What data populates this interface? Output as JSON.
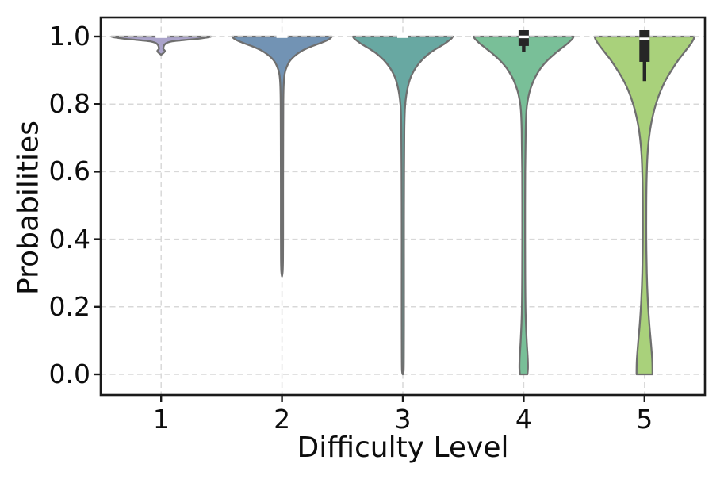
{
  "figure": {
    "background": "#ffffff"
  },
  "chart_data": {
    "type": "violin",
    "title": "",
    "xlabel": "Difficulty Level",
    "ylabel": "Probabilities",
    "categories": [
      "1",
      "2",
      "3",
      "4",
      "5"
    ],
    "ytick_labels": [
      "0.0",
      "0.2",
      "0.4",
      "0.6",
      "0.8",
      "1.0"
    ],
    "ytick_values": [
      0.0,
      0.2,
      0.4,
      0.6,
      0.8,
      1.0
    ],
    "ylim": [
      -0.06,
      1.06
    ],
    "grid": {
      "visible": true,
      "style": "dashed",
      "color": "#d8d8d8"
    },
    "style": {
      "edge_color": "#6f6f6f",
      "box_color": "#262626",
      "median_color": "#ffffff",
      "spine_color": "#1a1a1a",
      "text_color": "#0d0d0d",
      "background": "#ffffff"
    },
    "series": [
      {
        "category": "1",
        "color": "#aba4cb",
        "summary": {
          "min": 0.945,
          "max": 1.0,
          "median": 1.0,
          "peak": 1.0
        },
        "box": {
          "type": "tick",
          "median": 1.0
        },
        "profile": [
          [
            1.0,
            1.0
          ],
          [
            0.997,
            0.92
          ],
          [
            0.993,
            0.72
          ],
          [
            0.99,
            0.5
          ],
          [
            0.987,
            0.3
          ],
          [
            0.984,
            0.17
          ],
          [
            0.98,
            0.1
          ],
          [
            0.975,
            0.065
          ],
          [
            0.97,
            0.05
          ],
          [
            0.963,
            0.045
          ],
          [
            0.957,
            0.075
          ],
          [
            0.951,
            0.045
          ],
          [
            0.946,
            0.0
          ]
        ]
      },
      {
        "category": "2",
        "color": "#7293b4",
        "summary": {
          "min": 0.29,
          "max": 1.0,
          "median": 1.0,
          "peak": 1.0
        },
        "box": {
          "type": "tick",
          "median": 1.0
        },
        "profile": [
          [
            1.0,
            1.0
          ],
          [
            0.995,
            0.97
          ],
          [
            0.99,
            0.92
          ],
          [
            0.985,
            0.845
          ],
          [
            0.98,
            0.76
          ],
          [
            0.975,
            0.67
          ],
          [
            0.97,
            0.58
          ],
          [
            0.96,
            0.43
          ],
          [
            0.95,
            0.32
          ],
          [
            0.94,
            0.235
          ],
          [
            0.93,
            0.17
          ],
          [
            0.92,
            0.125
          ],
          [
            0.9,
            0.07
          ],
          [
            0.88,
            0.045
          ],
          [
            0.85,
            0.032
          ],
          [
            0.8,
            0.026
          ],
          [
            0.7,
            0.024
          ],
          [
            0.55,
            0.022
          ],
          [
            0.42,
            0.022
          ],
          [
            0.34,
            0.02
          ],
          [
            0.305,
            0.014
          ],
          [
            0.29,
            0.0
          ]
        ]
      },
      {
        "category": "3",
        "color": "#68a8a2",
        "summary": {
          "min": 0.0,
          "max": 1.0,
          "median": 1.0,
          "peak": 1.0
        },
        "box": {
          "type": "tick",
          "median": 1.0
        },
        "profile": [
          [
            1.0,
            1.0
          ],
          [
            0.995,
            0.98
          ],
          [
            0.99,
            0.94
          ],
          [
            0.98,
            0.85
          ],
          [
            0.97,
            0.74
          ],
          [
            0.96,
            0.63
          ],
          [
            0.95,
            0.53
          ],
          [
            0.93,
            0.38
          ],
          [
            0.91,
            0.27
          ],
          [
            0.89,
            0.19
          ],
          [
            0.87,
            0.135
          ],
          [
            0.84,
            0.085
          ],
          [
            0.81,
            0.055
          ],
          [
            0.78,
            0.04
          ],
          [
            0.72,
            0.03
          ],
          [
            0.6,
            0.025
          ],
          [
            0.45,
            0.022
          ],
          [
            0.3,
            0.022
          ],
          [
            0.15,
            0.022
          ],
          [
            0.05,
            0.02
          ],
          [
            0.01,
            0.016
          ],
          [
            0.0,
            0.0
          ]
        ]
      },
      {
        "category": "4",
        "color": "#79bf98",
        "summary": {
          "min": 0.0,
          "max": 1.0,
          "median": 0.999,
          "q1": 0.972,
          "q3": 1.0,
          "whisker_low": 0.955,
          "peak": 1.0
        },
        "box": {
          "type": "box",
          "q3": 1.0,
          "q1": 0.972,
          "median": 0.999,
          "whisker_low": 0.955
        },
        "profile": [
          [
            1.0,
            1.0
          ],
          [
            0.995,
            0.985
          ],
          [
            0.99,
            0.955
          ],
          [
            0.98,
            0.885
          ],
          [
            0.97,
            0.8
          ],
          [
            0.96,
            0.715
          ],
          [
            0.95,
            0.63
          ],
          [
            0.93,
            0.48
          ],
          [
            0.91,
            0.36
          ],
          [
            0.89,
            0.27
          ],
          [
            0.87,
            0.2
          ],
          [
            0.84,
            0.125
          ],
          [
            0.81,
            0.08
          ],
          [
            0.78,
            0.055
          ],
          [
            0.72,
            0.04
          ],
          [
            0.6,
            0.03
          ],
          [
            0.45,
            0.028
          ],
          [
            0.3,
            0.03
          ],
          [
            0.18,
            0.038
          ],
          [
            0.1,
            0.06
          ],
          [
            0.05,
            0.08
          ],
          [
            0.02,
            0.085
          ],
          [
            0.0,
            0.075
          ]
        ]
      },
      {
        "category": "5",
        "color": "#a9d17b",
        "summary": {
          "min": 0.0,
          "max": 1.0,
          "median": 0.993,
          "q1": 0.925,
          "q3": 1.0,
          "whisker_low": 0.868,
          "peak": 1.0
        },
        "box": {
          "type": "box",
          "q3": 1.0,
          "q1": 0.925,
          "median": 0.993,
          "whisker_low": 0.868
        },
        "profile": [
          [
            1.0,
            1.0
          ],
          [
            0.995,
            0.99
          ],
          [
            0.99,
            0.975
          ],
          [
            0.98,
            0.935
          ],
          [
            0.97,
            0.885
          ],
          [
            0.95,
            0.78
          ],
          [
            0.93,
            0.675
          ],
          [
            0.9,
            0.54
          ],
          [
            0.87,
            0.42
          ],
          [
            0.84,
            0.325
          ],
          [
            0.81,
            0.25
          ],
          [
            0.78,
            0.19
          ],
          [
            0.74,
            0.13
          ],
          [
            0.7,
            0.09
          ],
          [
            0.65,
            0.06
          ],
          [
            0.58,
            0.042
          ],
          [
            0.5,
            0.035
          ],
          [
            0.4,
            0.035
          ],
          [
            0.3,
            0.045
          ],
          [
            0.22,
            0.065
          ],
          [
            0.15,
            0.095
          ],
          [
            0.09,
            0.13
          ],
          [
            0.04,
            0.155
          ],
          [
            0.0,
            0.16
          ]
        ]
      }
    ]
  }
}
